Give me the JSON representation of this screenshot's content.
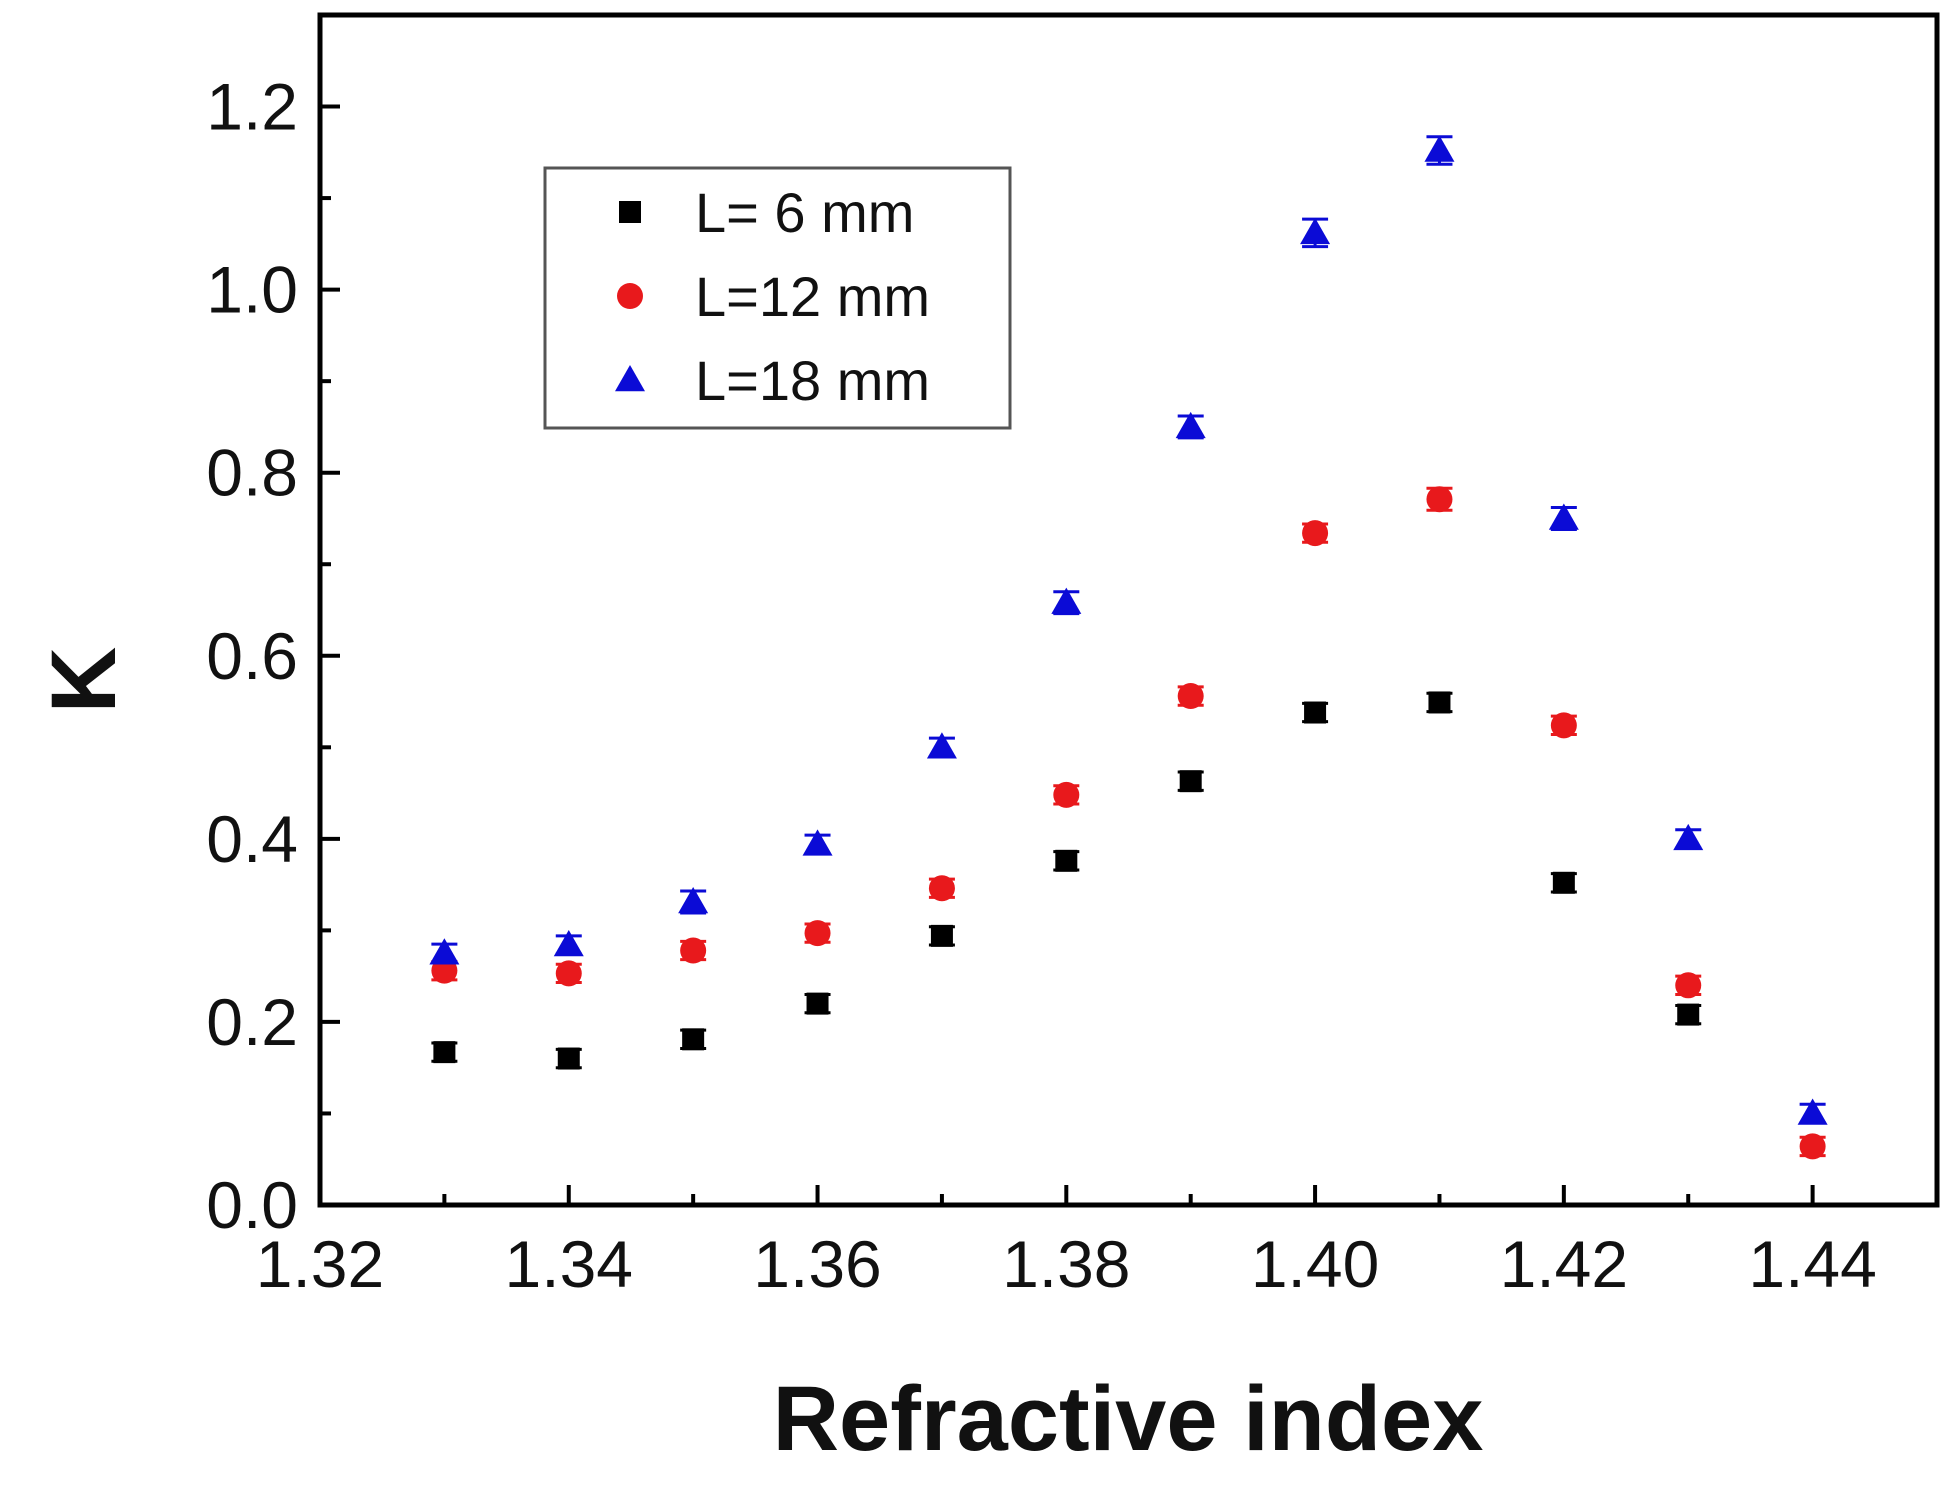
{
  "chart_data": {
    "type": "scatter",
    "title": "",
    "xlabel": "Refractive index",
    "ylabel": "K",
    "xlim": [
      1.32,
      1.45
    ],
    "ylim": [
      0.0,
      1.3
    ],
    "x_ticks": [
      1.32,
      1.34,
      1.36,
      1.38,
      1.4,
      1.42,
      1.44
    ],
    "x_tick_labels": [
      "1.32",
      "1.34",
      "1.36",
      "1.38",
      "1.40",
      "1.42",
      "1.44"
    ],
    "y_ticks": [
      0.0,
      0.2,
      0.4,
      0.6,
      0.8,
      1.0,
      1.2
    ],
    "y_tick_labels": [
      "0.0",
      "0.2",
      "0.4",
      "0.6",
      "0.8",
      "1.0",
      "1.2"
    ],
    "legend_position": "upper-left",
    "series": [
      {
        "name": "L=  6 mm",
        "marker": "square",
        "color": "#000000",
        "x": [
          1.33,
          1.34,
          1.35,
          1.36,
          1.37,
          1.38,
          1.39,
          1.4,
          1.41,
          1.42,
          1.43
        ],
        "y": [
          0.167,
          0.16,
          0.181,
          0.22,
          0.294,
          0.376,
          0.463,
          0.538,
          0.549,
          0.352,
          0.208
        ],
        "error": [
          0.01,
          0.01,
          0.01,
          0.01,
          0.01,
          0.01,
          0.01,
          0.01,
          0.01,
          0.01,
          0.01
        ]
      },
      {
        "name": "L=12 mm",
        "marker": "circle",
        "color": "#e8191c",
        "x": [
          1.33,
          1.34,
          1.35,
          1.36,
          1.37,
          1.38,
          1.39,
          1.4,
          1.41,
          1.42,
          1.43,
          1.44
        ],
        "y": [
          0.256,
          0.253,
          0.278,
          0.297,
          0.346,
          0.448,
          0.556,
          0.734,
          0.771,
          0.524,
          0.24,
          0.064
        ],
        "error": [
          0.01,
          0.01,
          0.01,
          0.01,
          0.01,
          0.01,
          0.01,
          0.01,
          0.012,
          0.01,
          0.01,
          0.01
        ]
      },
      {
        "name": "L=18 mm",
        "marker": "triangle",
        "color": "#0b0bd6",
        "x": [
          1.33,
          1.34,
          1.35,
          1.36,
          1.37,
          1.38,
          1.39,
          1.4,
          1.41,
          1.42,
          1.43,
          1.44
        ],
        "y": [
          0.275,
          0.284,
          0.331,
          0.394,
          0.5,
          0.658,
          0.85,
          1.062,
          1.152,
          0.75,
          0.4,
          0.1
        ],
        "error": [
          0.01,
          0.01,
          0.012,
          0.01,
          0.01,
          0.012,
          0.012,
          0.015,
          0.015,
          0.012,
          0.01,
          0.01
        ]
      }
    ]
  }
}
